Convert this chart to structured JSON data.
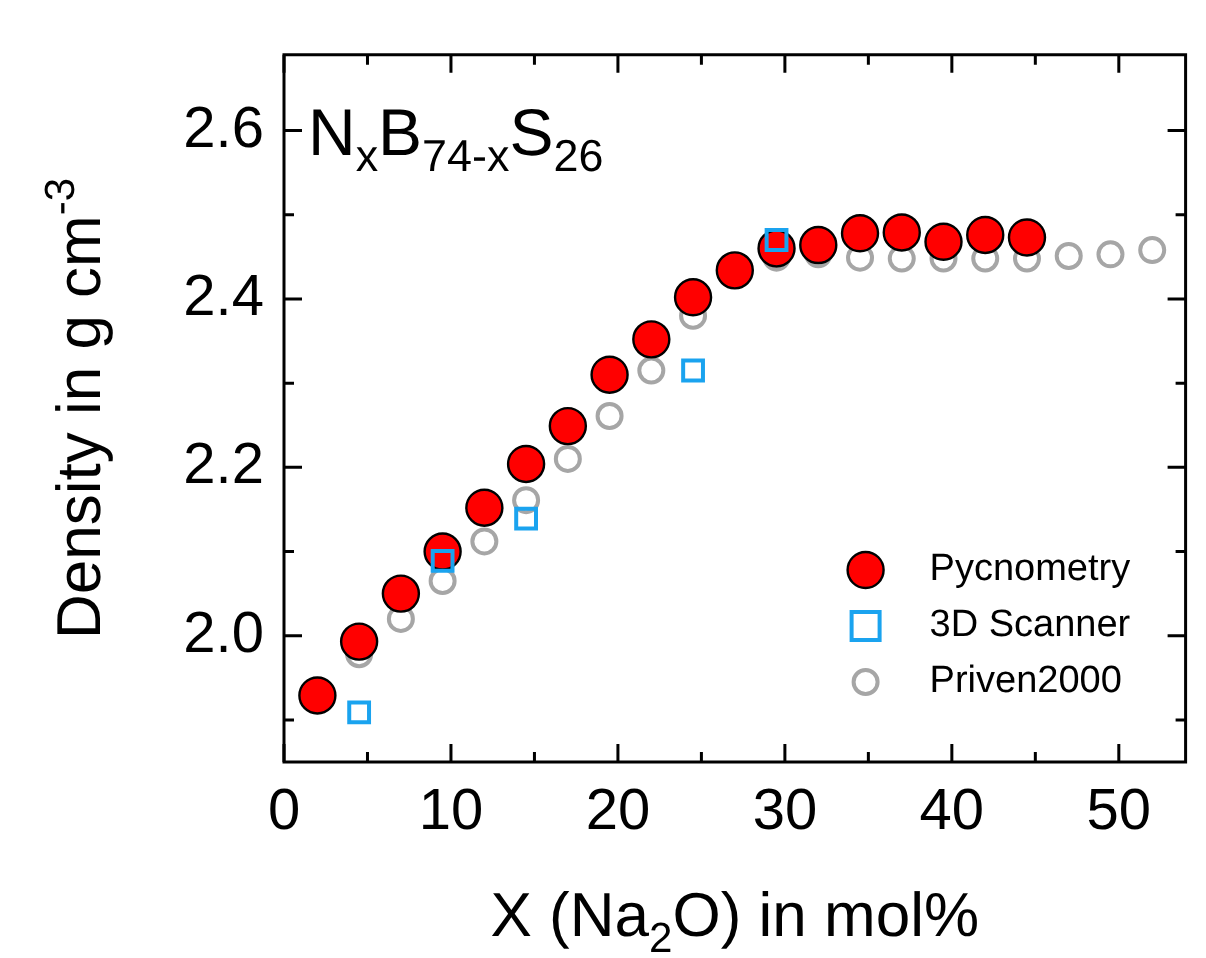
{
  "chart_data": {
    "type": "scatter",
    "annotations": [
      "N$_{x}$B$_{74-x}$S$_{26}$"
    ],
    "xlabel": "X (Na$_{2}$O) in mol%",
    "ylabel": "Density in g cm$^{-3}$",
    "xlim": [
      0,
      54
    ],
    "xticks": [
      0,
      {
        "value": 5,
        "label": null
      },
      10,
      {
        "value": 15,
        "label": null
      },
      20,
      {
        "value": 25,
        "label": null
      },
      30,
      {
        "value": 35,
        "label": null
      },
      40,
      {
        "value": 45,
        "label": null
      },
      50
    ],
    "ylim": [
      1.85,
      2.69
    ],
    "yticks": [
      {
        "value": 1.9,
        "label": null
      },
      {
        "value": 2.0,
        "label": "2.0"
      },
      {
        "value": 2.1,
        "label": null
      },
      {
        "value": 2.2,
        "label": "2.2"
      },
      {
        "value": 2.3,
        "label": null
      },
      {
        "value": 2.4,
        "label": "2.4"
      },
      {
        "value": 2.5,
        "label": null
      },
      {
        "value": 2.6,
        "label": "2.6"
      }
    ],
    "grid": false,
    "legend": "bottom right",
    "series": [
      {
        "name": "Pycnometry",
        "color": "#ff0000",
        "marker": "circle",
        "x": [
          2,
          4.5,
          7,
          9.5,
          12,
          14.5,
          17,
          19.5,
          22,
          24.5,
          27,
          29.5,
          32,
          34.5,
          37,
          39.5,
          42,
          44.5
        ],
        "values": [
          1.929,
          1.993,
          2.05,
          2.1,
          2.152,
          2.204,
          2.249,
          2.31,
          2.352,
          2.402,
          2.434,
          2.46,
          2.464,
          2.478,
          2.479,
          2.468,
          2.476,
          2.473
        ]
      },
      {
        "name": "3D Scanner",
        "color": "#1aa3ef",
        "marker": "square",
        "x": [
          4.5,
          9.5,
          14.5,
          24.5,
          29.5
        ],
        "values": [
          1.909,
          2.089,
          2.139,
          2.315,
          2.47
        ]
      },
      {
        "name": "Priven2000",
        "color": "#a6a6a6",
        "marker": "circle",
        "x": [
          4.5,
          7,
          9.5,
          12,
          14.5,
          17,
          19.5,
          22,
          24.5,
          29.5,
          32,
          34.5,
          37,
          39.5,
          42,
          44.5,
          47,
          49.5,
          52
        ],
        "values": [
          1.978,
          2.02,
          2.065,
          2.112,
          2.161,
          2.21,
          2.261,
          2.315,
          2.38,
          2.449,
          2.453,
          2.449,
          2.448,
          2.448,
          2.448,
          2.448,
          2.451,
          2.453,
          2.458
        ]
      }
    ]
  }
}
